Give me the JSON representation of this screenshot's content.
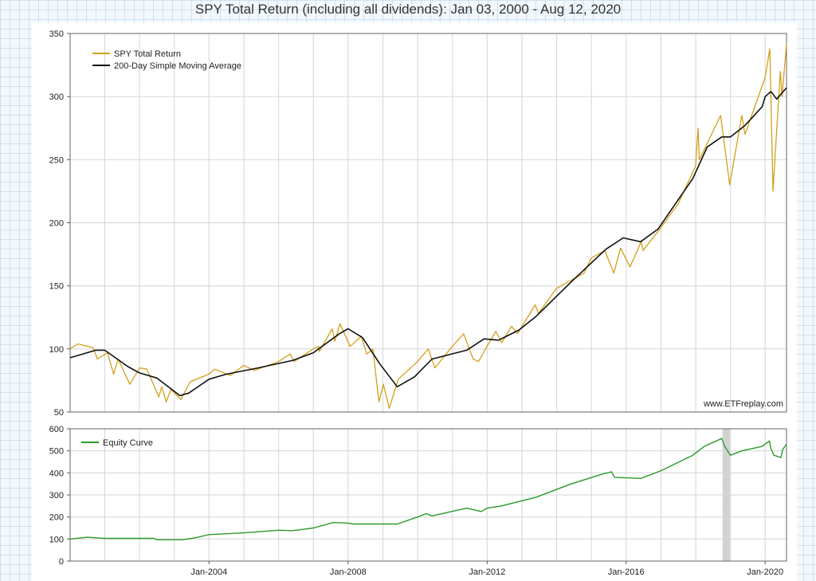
{
  "chart_data": [
    {
      "type": "line",
      "title": "SPY Total Return (including all dividends): Jan 03, 2000 - Aug 12, 2020",
      "xlabel": "",
      "ylabel": "",
      "xlim": [
        "2000-01-03",
        "2020-08-12"
      ],
      "ylim": [
        50,
        350
      ],
      "yticks": [
        50,
        100,
        150,
        200,
        250,
        300,
        350
      ],
      "grid": true,
      "legend_position": "top-left",
      "watermark": "www.ETFreplay.com",
      "series": [
        {
          "name": "SPY Total Return",
          "color": "#d4a01c",
          "points": [
            [
              "2000-01-03",
              100
            ],
            [
              "2000-03-24",
              104
            ],
            [
              "2000-09-01",
              101
            ],
            [
              "2000-10-15",
              92
            ],
            [
              "2001-01-30",
              97
            ],
            [
              "2001-04-04",
              80
            ],
            [
              "2001-05-22",
              92
            ],
            [
              "2001-09-21",
              72
            ],
            [
              "2002-01-04",
              85
            ],
            [
              "2002-03-19",
              84
            ],
            [
              "2002-07-23",
              62
            ],
            [
              "2002-08-22",
              70
            ],
            [
              "2002-10-09",
              58
            ],
            [
              "2002-11-27",
              68
            ],
            [
              "2003-03-11",
              60
            ],
            [
              "2003-06-17",
              74
            ],
            [
              "2003-12-31",
              80
            ],
            [
              "2004-03-01",
              84
            ],
            [
              "2004-08-12",
              79
            ],
            [
              "2004-12-31",
              87
            ],
            [
              "2005-04-20",
              83
            ],
            [
              "2005-12-31",
              90
            ],
            [
              "2006-05-05",
              96
            ],
            [
              "2006-06-13",
              90
            ],
            [
              "2006-12-31",
              100
            ],
            [
              "2007-02-27",
              102
            ],
            [
              "2007-03-05",
              98
            ],
            [
              "2007-07-19",
              116
            ],
            [
              "2007-08-15",
              106
            ],
            [
              "2007-10-09",
              120
            ],
            [
              "2008-01-22",
              102
            ],
            [
              "2008-05-19",
              110
            ],
            [
              "2008-07-15",
              96
            ],
            [
              "2008-09-19",
              100
            ],
            [
              "2008-11-20",
              58
            ],
            [
              "2009-01-06",
              72
            ],
            [
              "2009-03-09",
              53
            ],
            [
              "2009-06-12",
              76
            ],
            [
              "2009-12-31",
              90
            ],
            [
              "2010-04-23",
              100
            ],
            [
              "2010-07-02",
              85
            ],
            [
              "2010-12-31",
              102
            ],
            [
              "2011-04-29",
              112
            ],
            [
              "2011-08-08",
              92
            ],
            [
              "2011-10-03",
              90
            ],
            [
              "2011-12-31",
              102
            ],
            [
              "2012-04-02",
              114
            ],
            [
              "2012-06-04",
              105
            ],
            [
              "2012-09-14",
              118
            ],
            [
              "2012-11-15",
              112
            ],
            [
              "2013-05-21",
              135
            ],
            [
              "2013-06-24",
              128
            ],
            [
              "2013-12-31",
              148
            ],
            [
              "2014-10-15",
              160
            ],
            [
              "2014-12-31",
              172
            ],
            [
              "2015-05-21",
              178
            ],
            [
              "2015-08-25",
              160
            ],
            [
              "2015-11-03",
              180
            ],
            [
              "2016-02-11",
              165
            ],
            [
              "2016-06-08",
              185
            ],
            [
              "2016-06-27",
              178
            ],
            [
              "2016-12-31",
              196
            ],
            [
              "2017-06-30",
              215
            ],
            [
              "2017-12-31",
              245
            ],
            [
              "2018-01-26",
              275
            ],
            [
              "2018-02-08",
              250
            ],
            [
              "2018-09-20",
              285
            ],
            [
              "2018-12-24",
              230
            ],
            [
              "2019-04-30",
              285
            ],
            [
              "2019-06-03",
              270
            ],
            [
              "2019-12-31",
              315
            ],
            [
              "2020-02-19",
              338
            ],
            [
              "2020-03-23",
              225
            ],
            [
              "2020-06-08",
              320
            ],
            [
              "2020-06-26",
              300
            ],
            [
              "2020-08-12",
              342
            ]
          ]
        },
        {
          "name": "200-Day Simple Moving Average",
          "color": "#111111",
          "points": [
            [
              "2000-01-03",
              93
            ],
            [
              "2000-09-29",
              99
            ],
            [
              "2001-01-01",
              99
            ],
            [
              "2001-09-01",
              86
            ],
            [
              "2002-01-01",
              81
            ],
            [
              "2002-07-01",
              77
            ],
            [
              "2003-03-01",
              63
            ],
            [
              "2003-06-01",
              65
            ],
            [
              "2004-01-01",
              76
            ],
            [
              "2004-07-01",
              80
            ],
            [
              "2005-06-01",
              85
            ],
            [
              "2006-06-01",
              91
            ],
            [
              "2007-01-01",
              97
            ],
            [
              "2007-10-01",
              112
            ],
            [
              "2008-01-01",
              116
            ],
            [
              "2008-06-01",
              109
            ],
            [
              "2008-12-01",
              88
            ],
            [
              "2009-06-01",
              70
            ],
            [
              "2009-12-01",
              78
            ],
            [
              "2010-06-01",
              92
            ],
            [
              "2011-06-01",
              99
            ],
            [
              "2011-12-01",
              108
            ],
            [
              "2012-05-01",
              107
            ],
            [
              "2012-12-01",
              115
            ],
            [
              "2013-06-01",
              126
            ],
            [
              "2014-06-01",
              153
            ],
            [
              "2015-06-01",
              179
            ],
            [
              "2015-12-01",
              188
            ],
            [
              "2016-06-01",
              185
            ],
            [
              "2016-12-01",
              195
            ],
            [
              "2017-06-01",
              215
            ],
            [
              "2017-12-01",
              235
            ],
            [
              "2018-05-01",
              260
            ],
            [
              "2018-10-01",
              268
            ],
            [
              "2019-01-01",
              268
            ],
            [
              "2019-06-01",
              277
            ],
            [
              "2019-12-01",
              292
            ],
            [
              "2020-01-01",
              300
            ],
            [
              "2020-03-01",
              304
            ],
            [
              "2020-05-01",
              298
            ],
            [
              "2020-08-12",
              307
            ]
          ]
        }
      ]
    },
    {
      "type": "line",
      "title": "",
      "xlabel": "",
      "ylabel": "",
      "xlim": [
        "2000-01-03",
        "2020-08-12"
      ],
      "ylim": [
        0,
        600
      ],
      "yticks": [
        0,
        100,
        200,
        300,
        400,
        500,
        600
      ],
      "xticks": [
        "2004-01-01",
        "2008-01-01",
        "2012-01-01",
        "2016-01-01",
        "2020-01-01"
      ],
      "xtick_labels": [
        "Jan-2004",
        "Jan-2008",
        "Jan-2012",
        "Jan-2016",
        "Jan-2020"
      ],
      "grid": true,
      "legend_position": "top-left",
      "shaded_region": [
        "2018-10-10",
        "2018-12-26"
      ],
      "series": [
        {
          "name": "Equity Curve",
          "color": "#2a9a2a",
          "points": [
            [
              "2000-01-03",
              100
            ],
            [
              "2000-07-01",
              108
            ],
            [
              "2001-01-01",
              103
            ],
            [
              "2002-06-01",
              103
            ],
            [
              "2002-07-01",
              97
            ],
            [
              "2003-04-01",
              97
            ],
            [
              "2003-08-01",
              105
            ],
            [
              "2004-01-01",
              120
            ],
            [
              "2005-01-01",
              128
            ],
            [
              "2006-01-01",
              140
            ],
            [
              "2006-06-01",
              138
            ],
            [
              "2007-01-01",
              150
            ],
            [
              "2007-08-01",
              175
            ],
            [
              "2008-01-01",
              172
            ],
            [
              "2008-03-01",
              168
            ],
            [
              "2009-06-01",
              168
            ],
            [
              "2010-01-01",
              200
            ],
            [
              "2010-04-01",
              215
            ],
            [
              "2010-06-01",
              205
            ],
            [
              "2011-06-01",
              240
            ],
            [
              "2011-11-01",
              225
            ],
            [
              "2012-01-01",
              240
            ],
            [
              "2012-06-01",
              250
            ],
            [
              "2013-06-01",
              290
            ],
            [
              "2014-06-01",
              350
            ],
            [
              "2015-05-01",
              395
            ],
            [
              "2015-08-01",
              405
            ],
            [
              "2015-09-01",
              380
            ],
            [
              "2016-06-01",
              375
            ],
            [
              "2017-01-01",
              410
            ],
            [
              "2017-12-01",
              480
            ],
            [
              "2018-04-01",
              520
            ],
            [
              "2018-09-01",
              550
            ],
            [
              "2018-10-01",
              556
            ],
            [
              "2018-11-01",
              520
            ],
            [
              "2019-01-01",
              480
            ],
            [
              "2019-05-01",
              500
            ],
            [
              "2019-12-01",
              520
            ],
            [
              "2020-02-15",
              545
            ],
            [
              "2020-03-01",
              510
            ],
            [
              "2020-04-01",
              480
            ],
            [
              "2020-06-15",
              470
            ],
            [
              "2020-07-01",
              505
            ],
            [
              "2020-08-12",
              530
            ]
          ]
        }
      ]
    }
  ]
}
